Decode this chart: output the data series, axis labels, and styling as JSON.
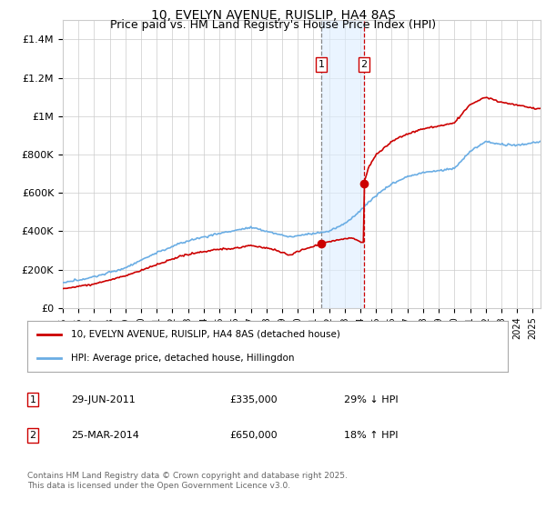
{
  "title": "10, EVELYN AVENUE, RUISLIP, HA4 8AS",
  "subtitle": "Price paid vs. HM Land Registry's House Price Index (HPI)",
  "title_fontsize": 10,
  "subtitle_fontsize": 9,
  "ylabel_ticks": [
    "£0",
    "£200K",
    "£400K",
    "£600K",
    "£800K",
    "£1M",
    "£1.2M",
    "£1.4M"
  ],
  "ytick_values": [
    0,
    200000,
    400000,
    600000,
    800000,
    1000000,
    1200000,
    1400000
  ],
  "ylim": [
    0,
    1500000
  ],
  "xlim_start": 1995,
  "xlim_end": 2025.5,
  "sale1_date": 2011.49,
  "sale1_price": 335000,
  "sale1_label": "1",
  "sale2_date": 2014.23,
  "sale2_price": 650000,
  "sale2_label": "2",
  "hpi_color": "#6aade4",
  "price_color": "#cc0000",
  "shade_color": "#ddeeff",
  "vline1_color": "#888888",
  "vline2_color": "#cc0000",
  "grid_color": "#cccccc",
  "bg_color": "#ffffff",
  "legend_label1": "10, EVELYN AVENUE, RUISLIP, HA4 8AS (detached house)",
  "legend_label2": "HPI: Average price, detached house, Hillingdon",
  "note1_num": "1",
  "note1_date": "29-JUN-2011",
  "note1_price": "£335,000",
  "note1_hpi": "29% ↓ HPI",
  "note2_num": "2",
  "note2_date": "25-MAR-2014",
  "note2_price": "£650,000",
  "note2_hpi": "18% ↑ HPI",
  "footer": "Contains HM Land Registry data © Crown copyright and database right 2025.\nThis data is licensed under the Open Government Licence v3.0."
}
